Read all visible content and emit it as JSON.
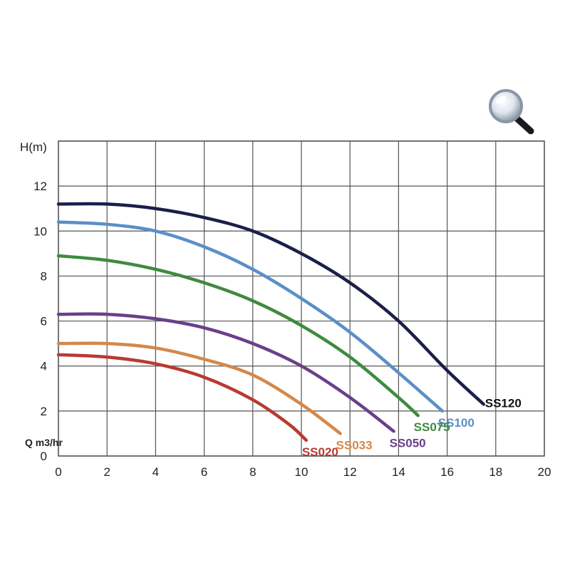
{
  "zoom_icon": "magnifier-icon",
  "chart_data": {
    "type": "line",
    "ylabel": "H(m)",
    "xlabel": "Q m3/hr",
    "xlim": [
      0,
      20
    ],
    "ylim": [
      0,
      14
    ],
    "xticks": [
      "0",
      "2",
      "4",
      "6",
      "8",
      "10",
      "12",
      "14",
      "16",
      "18",
      "20"
    ],
    "yticks": [
      "0",
      "2",
      "4",
      "6",
      "8",
      "10",
      "12"
    ],
    "grid": true,
    "series": [
      {
        "name": "SS120",
        "color": "#1c1f4a",
        "x": [
          0,
          2,
          4,
          6,
          8,
          10,
          12,
          14,
          16,
          17.5
        ],
        "y": [
          11.2,
          11.2,
          11.0,
          10.6,
          10.0,
          9.0,
          7.7,
          6.0,
          3.8,
          2.3
        ]
      },
      {
        "name": "SS100",
        "color": "#5b8fc7",
        "x": [
          0,
          2,
          4,
          6,
          8,
          10,
          12,
          14,
          15.8
        ],
        "y": [
          10.4,
          10.3,
          10.0,
          9.3,
          8.3,
          7.0,
          5.5,
          3.7,
          2.0
        ]
      },
      {
        "name": "SS075",
        "color": "#3f8a3f",
        "x": [
          0,
          2,
          4,
          6,
          8,
          10,
          12,
          14,
          14.8
        ],
        "y": [
          8.9,
          8.7,
          8.3,
          7.7,
          6.9,
          5.8,
          4.4,
          2.6,
          1.8
        ]
      },
      {
        "name": "SS050",
        "color": "#6b3f8a",
        "x": [
          0,
          2,
          4,
          6,
          8,
          10,
          12,
          13.8
        ],
        "y": [
          6.3,
          6.3,
          6.1,
          5.7,
          5.0,
          4.0,
          2.6,
          1.1
        ]
      },
      {
        "name": "SS033",
        "color": "#d4884a",
        "x": [
          0,
          2,
          4,
          6,
          8,
          10,
          11.6
        ],
        "y": [
          5.0,
          5.0,
          4.8,
          4.3,
          3.6,
          2.3,
          1.0
        ]
      },
      {
        "name": "SS020",
        "color": "#b83a32",
        "x": [
          0,
          2,
          4,
          6,
          8,
          9.5,
          10.2
        ],
        "y": [
          4.5,
          4.4,
          4.1,
          3.5,
          2.5,
          1.4,
          0.7
        ]
      }
    ]
  }
}
